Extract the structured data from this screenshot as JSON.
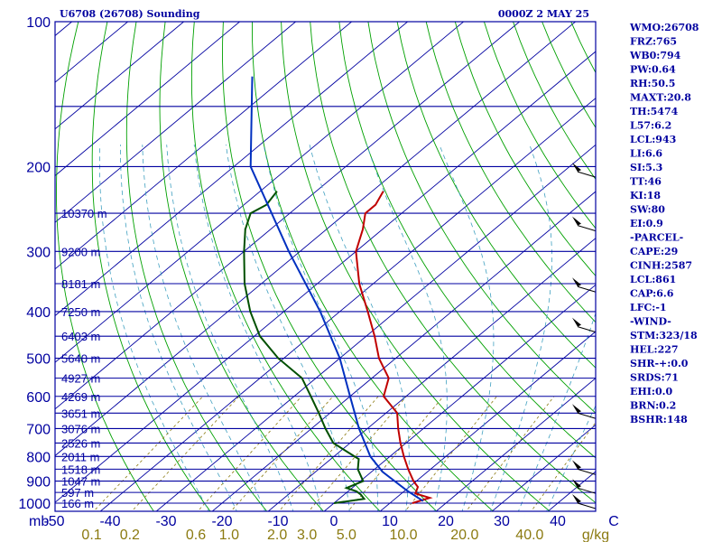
{
  "header": {
    "station": "U6708 (26708) Sounding",
    "time": "0000Z  2 MAY 25"
  },
  "indices": [
    "WMO:26708",
    "FRZ:765",
    "WB0:794",
    "PW:0.64",
    "RH:50.5",
    "MAXT:20.8",
    "TH:5474",
    "L57:6.2",
    "LCL:943",
    "LI:6.6",
    "SI:5.3",
    "TT:46",
    "KI:18",
    "SW:80",
    "EI:0.9",
    "-PARCEL-",
    "CAPE:29",
    "CINH:2587",
    "LCL:861",
    "CAP:6.6",
    "LFC:-1",
    "-WIND-",
    "STM:323/18",
    "HEL:227",
    "SHR-+:0.0",
    "SRDS:71",
    "EHI:0.0",
    "BRN:0.2",
    "BSHR:148"
  ],
  "colors": {
    "frame": "#0000a0",
    "isobar": "#0000a0",
    "isotherm": "#0000a0",
    "dry_adiabat": "#00a000",
    "moist_adiabat": "#40a0c0",
    "mixing_ratio": "#8b7a10",
    "temperature": "#c00000",
    "dewpoint": "#005000",
    "parcel": "#0030c0",
    "wind": "#000000"
  },
  "chart_data": {
    "type": "line",
    "title": "U6708 (26708) Sounding",
    "diagram": "skew-T log-P",
    "y_scale": "log",
    "pressure_ticks": [
      100,
      200,
      300,
      400,
      500,
      600,
      700,
      800,
      900,
      1000
    ],
    "ylim_hpa": [
      1050,
      100
    ],
    "xlim_c": [
      -50,
      50
    ],
    "temp_ticks": [
      "-50",
      "-40",
      "-30",
      "-20",
      "-10",
      "0",
      "10",
      "20",
      "30",
      "40",
      "C"
    ],
    "temp_tick_values": [
      -50,
      -40,
      -30,
      -20,
      -10,
      0,
      10,
      20,
      30,
      40
    ],
    "x_unit_left": "mb",
    "mixing_ratio_labels": [
      "0.1",
      "0.2",
      "0.6",
      "1.0",
      "2.0",
      "3.0",
      "5.0",
      "10.0",
      "20.0",
      "40.0",
      "g/kg"
    ],
    "mixing_ratio_values": [
      0.1,
      0.2,
      0.6,
      1.0,
      2.0,
      3.0,
      5.0,
      10.0,
      20.0,
      40.0
    ],
    "heights": [
      {
        "p": 250,
        "label": "10370 m"
      },
      {
        "p": 300,
        "label": "9200 m"
      },
      {
        "p": 350,
        "label": "8181 m"
      },
      {
        "p": 400,
        "label": "7250 m"
      },
      {
        "p": 450,
        "label": "6403 m"
      },
      {
        "p": 500,
        "label": "5640 m"
      },
      {
        "p": 550,
        "label": "4927 m"
      },
      {
        "p": 600,
        "label": "4269 m"
      },
      {
        "p": 650,
        "label": "3651 m"
      },
      {
        "p": 700,
        "label": "3076 m"
      },
      {
        "p": 750,
        "label": "2526 m"
      },
      {
        "p": 800,
        "label": "2011 m"
      },
      {
        "p": 850,
        "label": "1518 m"
      },
      {
        "p": 900,
        "label": "1047 m"
      },
      {
        "p": 950,
        "label": "597 m"
      },
      {
        "p": 1000,
        "label": "166 m"
      }
    ],
    "series": [
      {
        "key": "temperature",
        "points": [
          {
            "p": 1000,
            "t": 14.0
          },
          {
            "p": 975,
            "t": 16.0
          },
          {
            "p": 955,
            "t": 12.5
          },
          {
            "p": 925,
            "t": 11.5
          },
          {
            "p": 900,
            "t": 9.5
          },
          {
            "p": 850,
            "t": 6.0
          },
          {
            "p": 800,
            "t": 2.5
          },
          {
            "p": 750,
            "t": -1.0
          },
          {
            "p": 700,
            "t": -4.5
          },
          {
            "p": 650,
            "t": -8.0
          },
          {
            "p": 600,
            "t": -14.0
          },
          {
            "p": 550,
            "t": -17.0
          },
          {
            "p": 500,
            "t": -23.0
          },
          {
            "p": 450,
            "t": -28.5
          },
          {
            "p": 400,
            "t": -35.0
          },
          {
            "p": 350,
            "t": -42.5
          },
          {
            "p": 300,
            "t": -50.0
          },
          {
            "p": 270,
            "t": -53.5
          },
          {
            "p": 250,
            "t": -56.5
          },
          {
            "p": 240,
            "t": -56.5
          },
          {
            "p": 225,
            "t": -58.0
          }
        ]
      },
      {
        "key": "dewpoint",
        "points": [
          {
            "p": 1000,
            "t": 0.0
          },
          {
            "p": 980,
            "t": 4.5
          },
          {
            "p": 960,
            "t": 3.0
          },
          {
            "p": 945,
            "t": 1.5
          },
          {
            "p": 930,
            "t": -1.0
          },
          {
            "p": 900,
            "t": 0.5
          },
          {
            "p": 850,
            "t": -3.0
          },
          {
            "p": 810,
            "t": -5.0
          },
          {
            "p": 750,
            "t": -13.0
          },
          {
            "p": 700,
            "t": -17.5
          },
          {
            "p": 650,
            "t": -22.0
          },
          {
            "p": 600,
            "t": -27.0
          },
          {
            "p": 550,
            "t": -32.5
          },
          {
            "p": 500,
            "t": -41.0
          },
          {
            "p": 450,
            "t": -49.0
          },
          {
            "p": 400,
            "t": -56.0
          },
          {
            "p": 350,
            "t": -63.0
          },
          {
            "p": 300,
            "t": -70.0
          },
          {
            "p": 270,
            "t": -74.5
          },
          {
            "p": 250,
            "t": -77.0
          },
          {
            "p": 240,
            "t": -76.0
          },
          {
            "p": 225,
            "t": -77.0
          }
        ]
      },
      {
        "key": "parcel",
        "points": [
          {
            "p": 990,
            "t": 15.5
          },
          {
            "p": 943,
            "t": 10.5
          },
          {
            "p": 861,
            "t": 2.0
          },
          {
            "p": 800,
            "t": -3.5
          },
          {
            "p": 700,
            "t": -11.5
          },
          {
            "p": 600,
            "t": -20.0
          },
          {
            "p": 500,
            "t": -30.0
          },
          {
            "p": 400,
            "t": -43.5
          },
          {
            "p": 300,
            "t": -62.0
          },
          {
            "p": 200,
            "t": -87.0
          },
          {
            "p": 130,
            "t": -106.0
          }
        ]
      }
    ],
    "wind_barbs": [
      {
        "p": 205
      },
      {
        "p": 265
      },
      {
        "p": 355
      },
      {
        "p": 430
      },
      {
        "p": 650
      },
      {
        "p": 850
      },
      {
        "p": 930
      },
      {
        "p": 1000
      }
    ]
  }
}
